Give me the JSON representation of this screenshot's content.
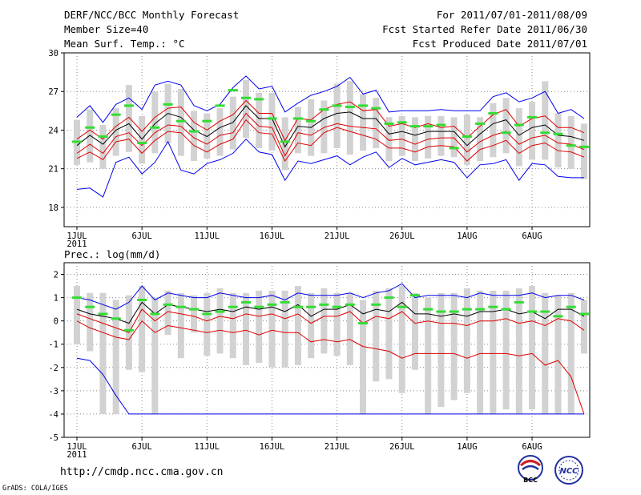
{
  "header": {
    "title": "DERF/NCC/BCC Monthly Forecast",
    "member_size": "Member Size=40",
    "variable": "Mean Surf. Temp.: °C",
    "period": "For 2011/07/01-2011/08/09",
    "start_date": "Fcst Started Refer Date 2011/06/30",
    "produced_date": "Fcst Produced Date 2011/07/01"
  },
  "footer": {
    "url": "http://cmdp.ncc.cma.gov.cn",
    "credit": "GrADS: COLA/IGES",
    "logo1": "BCC",
    "logo2": "NCC"
  },
  "colors": {
    "bar": "#d2d2d2",
    "mean": "#000000",
    "spread": "#e00000",
    "extreme": "#0000ee",
    "obs": "#33dd33",
    "grid": "#888888"
  },
  "x_tick_labels": [
    "1JUL",
    "6JUL",
    "11JUL",
    "16JUL",
    "21JUL",
    "26JUL",
    "1AUG",
    "6AUG"
  ],
  "x_year_label": "2011",
  "chart_data": [
    {
      "type": "line",
      "title": "Mean Surf. Temp.: °C",
      "ylim": [
        16.5,
        30
      ],
      "yticks": [
        18,
        21,
        24,
        27,
        30
      ],
      "x": [
        1,
        2,
        3,
        4,
        5,
        6,
        7,
        8,
        9,
        10,
        11,
        12,
        13,
        14,
        15,
        16,
        17,
        18,
        19,
        20,
        21,
        22,
        23,
        24,
        25,
        26,
        27,
        28,
        29,
        30,
        31,
        32,
        33,
        34,
        35,
        36,
        37,
        38,
        39,
        40
      ],
      "series": [
        {
          "name": "max",
          "values": [
            25.0,
            25.9,
            24.6,
            26.0,
            26.5,
            25.6,
            27.5,
            27.8,
            27.5,
            25.9,
            25.5,
            26.0,
            27.3,
            28.2,
            27.2,
            27.4,
            25.4,
            26.1,
            26.7,
            27.0,
            27.4,
            28.1,
            26.8,
            27.1,
            25.4,
            25.5,
            25.5,
            25.5,
            25.6,
            25.5,
            25.5,
            25.5,
            26.6,
            26.9,
            26.2,
            26.5,
            27.0,
            25.3,
            25.6,
            24.9
          ]
        },
        {
          "name": "p75",
          "values": [
            23.3,
            24.0,
            23.3,
            24.3,
            25.0,
            23.9,
            25.0,
            25.7,
            25.8,
            24.6,
            24.0,
            24.7,
            25.2,
            26.3,
            25.3,
            25.3,
            23.2,
            24.9,
            24.8,
            25.6,
            26.0,
            26.2,
            25.5,
            25.6,
            24.3,
            24.5,
            24.2,
            24.5,
            24.2,
            24.3,
            23.4,
            24.3,
            25.2,
            25.6,
            24.3,
            24.9,
            25.1,
            24.2,
            24.2,
            23.8
          ]
        },
        {
          "name": "mean",
          "values": [
            22.8,
            23.6,
            22.9,
            24.0,
            24.5,
            23.3,
            24.5,
            25.3,
            25.0,
            24.0,
            23.5,
            24.2,
            24.6,
            25.9,
            24.9,
            24.9,
            22.7,
            24.3,
            24.2,
            24.9,
            25.3,
            25.4,
            24.9,
            24.9,
            23.7,
            23.9,
            23.6,
            23.9,
            23.9,
            23.9,
            22.8,
            23.7,
            24.5,
            24.8,
            23.6,
            24.2,
            24.4,
            23.6,
            23.5,
            23.2
          ]
        },
        {
          "name": "p25",
          "values": [
            22.2,
            22.9,
            22.2,
            23.5,
            23.8,
            22.8,
            23.8,
            24.4,
            24.3,
            23.4,
            22.9,
            23.6,
            23.8,
            25.3,
            24.3,
            24.2,
            22.0,
            23.8,
            23.6,
            24.2,
            24.5,
            24.3,
            24.2,
            24.1,
            23.2,
            23.3,
            22.9,
            23.3,
            23.4,
            23.4,
            22.3,
            23.1,
            23.6,
            23.9,
            22.9,
            23.4,
            23.6,
            23.0,
            22.9,
            22.5
          ]
        },
        {
          "name": "p10",
          "values": [
            21.8,
            22.3,
            21.7,
            23.1,
            23.3,
            22.2,
            23.2,
            23.9,
            23.8,
            22.8,
            22.3,
            22.9,
            23.3,
            24.8,
            23.8,
            23.7,
            21.6,
            23.0,
            22.8,
            23.8,
            24.2,
            23.9,
            23.6,
            23.3,
            22.6,
            22.6,
            22.3,
            22.7,
            22.8,
            22.7,
            21.6,
            22.5,
            22.8,
            23.2,
            22.2,
            22.8,
            23.0,
            22.4,
            22.3,
            21.9
          ]
        },
        {
          "name": "min",
          "values": [
            19.4,
            19.5,
            18.8,
            21.5,
            21.9,
            20.6,
            21.5,
            23.1,
            20.9,
            20.6,
            21.4,
            21.7,
            22.2,
            23.3,
            22.3,
            22.1,
            20.1,
            21.6,
            21.4,
            21.7,
            22.0,
            21.3,
            21.9,
            22.3,
            21.1,
            21.8,
            21.3,
            21.5,
            21.7,
            21.5,
            20.3,
            21.3,
            21.4,
            21.7,
            20.1,
            21.4,
            21.3,
            20.4,
            20.3,
            20.3
          ]
        },
        {
          "name": "bar_top",
          "values": [
            24.8,
            25.6,
            24.4,
            25.7,
            27.5,
            25.1,
            27.0,
            27.6,
            27.2,
            25.5,
            25.3,
            25.7,
            26.6,
            27.9,
            26.9,
            26.9,
            25.0,
            25.8,
            26.4,
            26.3,
            27.6,
            27.8,
            26.8,
            26.5,
            25.0,
            25.1,
            25.0,
            25.1,
            25.1,
            25.0,
            25.2,
            25.0,
            26.1,
            26.5,
            25.7,
            26.2,
            27.8,
            25.3,
            25.1,
            24.5
          ]
        },
        {
          "name": "bar_bottom",
          "values": [
            21.3,
            21.5,
            21.0,
            22.0,
            22.3,
            21.4,
            22.2,
            23.0,
            22.0,
            21.6,
            21.8,
            22.0,
            22.5,
            23.4,
            22.6,
            22.4,
            20.9,
            22.2,
            22.0,
            22.2,
            22.6,
            22.1,
            22.4,
            22.6,
            21.6,
            22.0,
            21.6,
            21.8,
            22.0,
            21.9,
            21.3,
            21.6,
            21.9,
            22.2,
            21.2,
            21.7,
            21.7,
            21.1,
            21.0,
            20.2
          ]
        },
        {
          "name": "obs",
          "values": [
            23.1,
            24.2,
            23.5,
            25.2,
            25.9,
            23.0,
            24.2,
            26.0,
            24.7,
            23.9,
            24.7,
            25.9,
            27.1,
            26.5,
            26.4,
            24.9,
            23.1,
            24.9,
            24.7,
            25.6,
            25.9,
            25.8,
            25.9,
            25.7,
            24.5,
            24.6,
            24.3,
            24.3,
            24.4,
            22.6,
            23.5,
            24.5,
            25.3,
            23.8,
            24.4,
            25.0,
            23.8,
            23.7,
            22.8,
            22.7
          ]
        }
      ]
    },
    {
      "type": "line",
      "title": "Prec.: log(mm/d)",
      "ylim": [
        -5,
        2.5
      ],
      "yticks": [
        -5,
        -4,
        -3,
        -2,
        -1,
        0,
        1,
        2
      ],
      "x": [
        1,
        2,
        3,
        4,
        5,
        6,
        7,
        8,
        9,
        10,
        11,
        12,
        13,
        14,
        15,
        16,
        17,
        18,
        19,
        20,
        21,
        22,
        23,
        24,
        25,
        26,
        27,
        28,
        29,
        30,
        31,
        32,
        33,
        34,
        35,
        36,
        37,
        38,
        39,
        40
      ],
      "series": [
        {
          "name": "max",
          "values": [
            1.0,
            0.9,
            0.7,
            0.5,
            0.8,
            1.5,
            0.9,
            1.2,
            1.1,
            1.0,
            1.0,
            1.2,
            1.1,
            1.0,
            1.0,
            1.1,
            0.9,
            1.2,
            1.1,
            1.1,
            1.1,
            1.2,
            1.0,
            1.2,
            1.3,
            1.6,
            1.0,
            1.1,
            1.1,
            1.1,
            1.0,
            1.2,
            1.1,
            1.1,
            1.1,
            1.2,
            1.0,
            1.1,
            1.1,
            0.9
          ]
        },
        {
          "name": "mean",
          "values": [
            0.5,
            0.3,
            0.2,
            0.1,
            -0.1,
            0.8,
            0.3,
            0.7,
            0.6,
            0.5,
            0.4,
            0.5,
            0.4,
            0.6,
            0.5,
            0.6,
            0.4,
            0.7,
            0.2,
            0.5,
            0.5,
            0.7,
            0.3,
            0.5,
            0.4,
            0.8,
            0.3,
            0.3,
            0.2,
            0.3,
            0.2,
            0.4,
            0.4,
            0.5,
            0.3,
            0.4,
            0.1,
            0.5,
            0.5,
            0.2
          ]
        },
        {
          "name": "p25",
          "values": [
            0.3,
            0.1,
            -0.1,
            -0.3,
            -0.5,
            0.5,
            0.0,
            0.4,
            0.3,
            0.2,
            0.0,
            0.2,
            0.1,
            0.3,
            0.2,
            0.3,
            0.1,
            0.3,
            -0.1,
            0.2,
            0.2,
            0.4,
            -0.1,
            0.2,
            0.1,
            0.4,
            -0.1,
            0.0,
            -0.1,
            -0.1,
            -0.2,
            0.0,
            0.0,
            0.1,
            -0.1,
            0.0,
            -0.2,
            0.1,
            0.0,
            -0.4
          ]
        },
        {
          "name": "p10",
          "values": [
            0.0,
            -0.3,
            -0.5,
            -0.7,
            -0.8,
            0.0,
            -0.5,
            -0.2,
            -0.3,
            -0.4,
            -0.5,
            -0.4,
            -0.5,
            -0.4,
            -0.6,
            -0.4,
            -0.5,
            -0.5,
            -0.9,
            -0.8,
            -0.9,
            -0.8,
            -1.1,
            -1.2,
            -1.3,
            -1.6,
            -1.4,
            -1.4,
            -1.4,
            -1.4,
            -1.6,
            -1.4,
            -1.4,
            -1.4,
            -1.5,
            -1.4,
            -1.9,
            -1.7,
            -2.4,
            -4.0
          ]
        },
        {
          "name": "min",
          "values": [
            -1.6,
            -1.7,
            -2.3,
            -3.2,
            -4.0,
            -4.0,
            -4.0,
            -4.0,
            -4.0,
            -4.0,
            -4.0,
            -4.0,
            -4.0,
            -4.0,
            -4.0,
            -4.0,
            -4.0,
            -4.0,
            -4.0,
            -4.0,
            -4.0,
            -4.0,
            -4.0,
            -4.0,
            -4.0,
            -4.0,
            -4.0,
            -4.0,
            -4.0,
            -4.0,
            -4.0,
            -4.0,
            -4.0,
            -4.0,
            -4.0,
            -4.0,
            -4.0,
            -4.0,
            -4.0,
            -4.0
          ]
        },
        {
          "name": "bar_top",
          "values": [
            1.5,
            1.2,
            1.2,
            0.9,
            1.1,
            1.5,
            1.0,
            1.3,
            1.2,
            1.1,
            1.2,
            1.4,
            1.2,
            1.2,
            1.3,
            1.3,
            1.3,
            1.5,
            1.2,
            1.4,
            1.2,
            1.2,
            0.9,
            1.3,
            1.4,
            1.5,
            1.2,
            1.0,
            1.2,
            1.2,
            1.4,
            1.3,
            1.3,
            1.3,
            1.4,
            1.5,
            1.2,
            1.1,
            1.2,
            0.9
          ]
        },
        {
          "name": "bar_bottom",
          "values": [
            -1.0,
            -1.3,
            -4.0,
            -4.0,
            -2.1,
            -2.2,
            -4.0,
            -0.6,
            -1.6,
            -0.5,
            -1.5,
            -1.4,
            -1.6,
            -1.9,
            -1.8,
            -2.0,
            -2.0,
            -1.9,
            -1.6,
            -1.4,
            -1.5,
            -1.9,
            -4.0,
            -2.6,
            -2.5,
            -3.1,
            -2.1,
            -4.0,
            -3.7,
            -3.4,
            -3.1,
            -4.0,
            -4.0,
            -3.8,
            -4.0,
            -3.8,
            -4.0,
            -4.0,
            -4.0,
            -1.4
          ]
        },
        {
          "name": "obs",
          "values": [
            1.0,
            0.6,
            0.3,
            0.1,
            -0.4,
            0.9,
            0.3,
            0.7,
            0.6,
            0.5,
            0.3,
            0.4,
            0.6,
            0.8,
            0.6,
            0.7,
            0.8,
            0.6,
            0.6,
            0.7,
            0.6,
            0.7,
            -0.1,
            0.7,
            1.0,
            0.6,
            1.1,
            0.5,
            0.4,
            0.4,
            0.5,
            0.5,
            0.6,
            0.5,
            0.8,
            0.4,
            0.4,
            0.2,
            0.6,
            0.3
          ]
        }
      ]
    }
  ]
}
